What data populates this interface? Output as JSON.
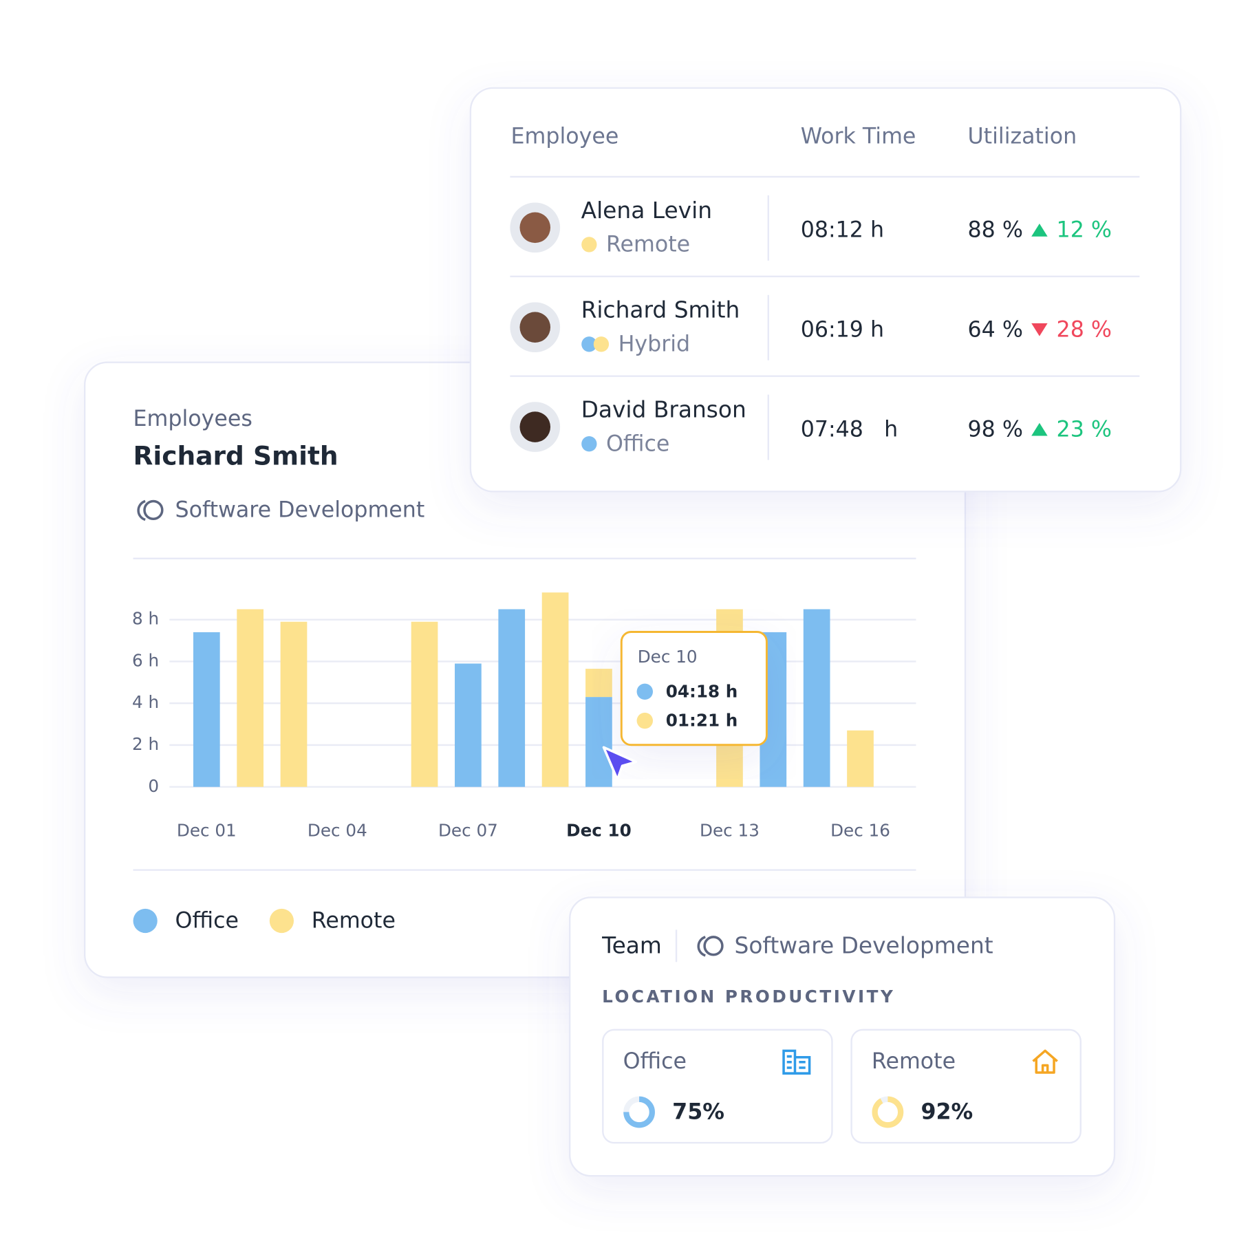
{
  "table": {
    "headers": [
      "Employee",
      "Work Time",
      "Utilization"
    ],
    "rows": [
      {
        "name": "Alena Levin",
        "location": "Remote",
        "location_colors": [
          "#fde28e"
        ],
        "work_time": "08:12 h",
        "utilization": "88 %",
        "trend": "up",
        "change": "12 %"
      },
      {
        "name": "Richard Smith",
        "location": "Hybrid",
        "location_colors": [
          "#7dbdf0",
          "#fde28e"
        ],
        "work_time": "06:19 h",
        "utilization": "64 %",
        "trend": "down",
        "change": "28 %"
      },
      {
        "name": "David Branson",
        "location": "Office",
        "location_colors": [
          "#7dbdf0"
        ],
        "work_time": "07:48   h",
        "utilization": "98 %",
        "trend": "up",
        "change": "23 %"
      }
    ]
  },
  "employee_card": {
    "label": "Employees",
    "name": "Richard Smith",
    "team": "Software Development"
  },
  "chart_data": {
    "type": "bar",
    "stacked": true,
    "categories": [
      "Dec 01",
      null,
      null,
      "Dec 04",
      null,
      null,
      "Dec 07",
      null,
      null,
      "Dec 10",
      null,
      null,
      "Dec 13",
      null,
      null,
      "Dec 16"
    ],
    "highlight": 9,
    "series": [
      {
        "name": "Office",
        "color": "#7dbdf0",
        "values": [
          7.4,
          null,
          null,
          null,
          null,
          null,
          5.9,
          8.5,
          null,
          4.3,
          null,
          null,
          null,
          7.4,
          8.5,
          null
        ],
        "value_labels": [
          null,
          null,
          null,
          null,
          null,
          null,
          null,
          null,
          null,
          "04:18 h",
          null,
          null,
          null,
          null,
          null,
          null
        ]
      },
      {
        "name": "Remote",
        "color": "#fde28e",
        "values": [
          null,
          8.5,
          7.9,
          null,
          null,
          7.9,
          null,
          null,
          9.3,
          1.35,
          null,
          null,
          8.5,
          null,
          null,
          2.7
        ],
        "value_labels": [
          null,
          null,
          null,
          null,
          null,
          null,
          null,
          null,
          null,
          "01:21 h",
          null,
          null,
          null,
          null,
          null,
          null
        ]
      }
    ],
    "ylim": [
      0,
      10
    ],
    "yticks": [
      0,
      {
        "value": 2,
        "label": "2 h"
      },
      {
        "value": 4,
        "label": "4 h"
      },
      {
        "value": 6,
        "label": "6 h"
      },
      {
        "value": 8,
        "label": "8 h"
      }
    ],
    "grid": true,
    "legend": "bottom-left"
  },
  "team_card": {
    "label": "Team",
    "team": "Software Development",
    "heading": "LOCATION PRODUCTIVITY",
    "tiles": [
      {
        "name": "Office",
        "value": 75,
        "value_label": "75%",
        "color": "#7dbdf0"
      },
      {
        "name": "Remote",
        "value": 92,
        "value_label": "92%",
        "color": "#fde28e"
      }
    ]
  }
}
